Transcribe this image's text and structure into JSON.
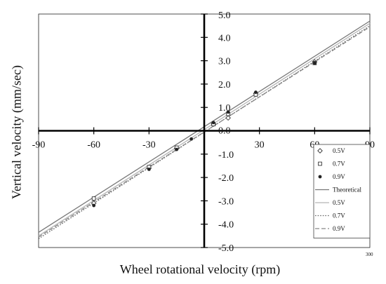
{
  "chart_data": {
    "type": "scatter",
    "title": "",
    "xlabel": "Wheel rotational velocity (rpm)",
    "ylabel": "Vertical velocity (mm/sec)",
    "xlim": [
      -90,
      90
    ],
    "ylim": [
      -5.0,
      5.0
    ],
    "x_ticks": [
      "-90",
      "-60",
      "-30",
      "0",
      "30",
      "60",
      "90"
    ],
    "y_ticks": [
      "-5.0",
      "-4.0",
      "-3.0",
      "-2.0",
      "-1.0",
      "0.0",
      "1.0",
      "2.0",
      "3.0",
      "4.0",
      "5.0"
    ],
    "grid": false,
    "legend_position": "bottom-right",
    "corner_note": "300",
    "series": [
      {
        "name": "0.5V",
        "kind": "points",
        "marker": "diamond",
        "x": [
          -60,
          -30,
          -15,
          5,
          13,
          28,
          60
        ],
        "y": [
          -3.1,
          -1.6,
          -0.75,
          0.3,
          0.55,
          1.6,
          2.95
        ]
      },
      {
        "name": "0.7V",
        "kind": "points",
        "marker": "square",
        "x": [
          -60,
          -30,
          -15,
          5,
          13,
          28,
          60
        ],
        "y": [
          -2.9,
          -1.55,
          -0.72,
          0.28,
          0.72,
          1.55,
          2.9
        ]
      },
      {
        "name": "0.9V",
        "kind": "points",
        "marker": "dot",
        "x": [
          -60,
          -30,
          -15,
          -7,
          5,
          13,
          28,
          60
        ],
        "y": [
          -3.2,
          -1.65,
          -0.8,
          -0.35,
          0.35,
          0.8,
          1.65,
          2.9
        ]
      },
      {
        "name": "Theoretical",
        "kind": "line",
        "dash": "solid",
        "color": "#777777",
        "x": [
          -90,
          90
        ],
        "y": [
          -4.35,
          4.7
        ]
      },
      {
        "name": "0.5V",
        "kind": "line",
        "dash": "solid",
        "color": "#b5b5b5",
        "x": [
          -90,
          90
        ],
        "y": [
          -4.5,
          4.6
        ]
      },
      {
        "name": "0.7V",
        "kind": "line",
        "dash": "dotted",
        "color": "#666666",
        "x": [
          -90,
          90
        ],
        "y": [
          -4.62,
          4.5
        ]
      },
      {
        "name": "0.9V",
        "kind": "line",
        "dash": "dashed",
        "color": "#888888",
        "x": [
          -90,
          90
        ],
        "y": [
          -4.55,
          4.45
        ]
      }
    ]
  }
}
